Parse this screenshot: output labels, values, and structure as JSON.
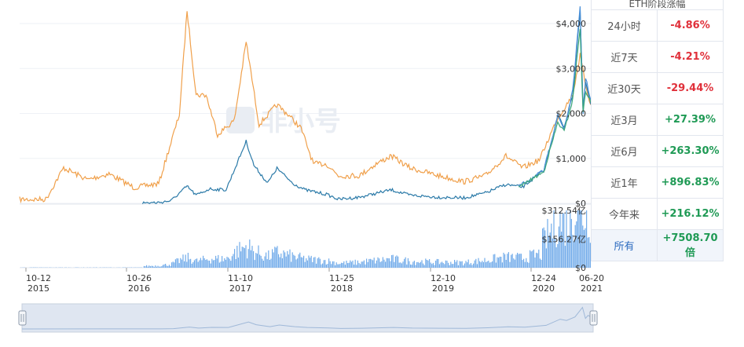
{
  "chart_data": {
    "type": "line",
    "price_axis_ticks": [
      "$4,000",
      "$3,000",
      "$2,000",
      "$1,000",
      "$0"
    ],
    "price_axis_values": [
      4000,
      3000,
      2000,
      1000,
      0
    ],
    "volume_axis_ticks": [
      "$312.54亿",
      "$156.27亿",
      "$0"
    ],
    "volume_axis_values": [
      312.54,
      156.27,
      0
    ],
    "x_ticks": [
      {
        "date": "10-12",
        "year": "2015"
      },
      {
        "date": "10-26",
        "year": "2016"
      },
      {
        "date": "11-10",
        "year": "2017"
      },
      {
        "date": "11-25",
        "year": "2018"
      },
      {
        "date": "12-10",
        "year": "2019"
      },
      {
        "date": "12-24",
        "year": "2020"
      },
      {
        "date": "06-20",
        "year": "2021"
      }
    ],
    "x_range": [
      "2015-10-12",
      "2021-06-20"
    ],
    "series": [
      {
        "color": "#f0a04b",
        "axis": "independent",
        "points": [
          [
            "2015-10-12",
            0.02
          ],
          [
            "2016-01-15",
            0.02
          ],
          [
            "2016-03-20",
            0.18
          ],
          [
            "2016-06-15",
            0.12
          ],
          [
            "2016-09-01",
            0.15
          ],
          [
            "2016-12-01",
            0.08
          ],
          [
            "2017-03-01",
            0.1
          ],
          [
            "2017-05-15",
            0.45
          ],
          [
            "2017-06-12",
            0.98
          ],
          [
            "2017-07-15",
            0.55
          ],
          [
            "2017-08-20",
            0.55
          ],
          [
            "2017-10-01",
            0.35
          ],
          [
            "2017-12-01",
            0.42
          ],
          [
            "2018-01-13",
            0.82
          ],
          [
            "2018-03-01",
            0.4
          ],
          [
            "2018-05-05",
            0.5
          ],
          [
            "2018-06-15",
            0.45
          ],
          [
            "2018-08-01",
            0.38
          ],
          [
            "2018-09-15",
            0.2
          ],
          [
            "2018-11-01",
            0.2
          ],
          [
            "2018-12-15",
            0.14
          ],
          [
            "2019-03-01",
            0.14
          ],
          [
            "2019-05-01",
            0.2
          ],
          [
            "2019-06-25",
            0.24
          ],
          [
            "2019-09-01",
            0.18
          ],
          [
            "2019-12-15",
            0.14
          ],
          [
            "2020-03-15",
            0.11
          ],
          [
            "2020-06-01",
            0.14
          ],
          [
            "2020-08-15",
            0.24
          ],
          [
            "2020-10-15",
            0.18
          ],
          [
            "2020-12-15",
            0.22
          ],
          [
            "2021-02-15",
            0.42
          ],
          [
            "2021-04-15",
            0.55
          ],
          [
            "2021-05-12",
            0.75
          ],
          [
            "2021-06-01",
            0.6
          ],
          [
            "2021-06-20",
            0.5
          ]
        ]
      },
      {
        "color": "#2b7aa8",
        "axis": "price",
        "points": [
          [
            "2017-01-01",
            10
          ],
          [
            "2017-03-01",
            18
          ],
          [
            "2017-04-15",
            60
          ],
          [
            "2017-06-12",
            380
          ],
          [
            "2017-07-15",
            180
          ],
          [
            "2017-09-01",
            320
          ],
          [
            "2017-11-01",
            300
          ],
          [
            "2018-01-13",
            1380
          ],
          [
            "2018-02-10",
            850
          ],
          [
            "2018-04-01",
            450
          ],
          [
            "2018-05-05",
            780
          ],
          [
            "2018-07-01",
            450
          ],
          [
            "2018-08-15",
            300
          ],
          [
            "2018-11-01",
            200
          ],
          [
            "2018-12-15",
            90
          ],
          [
            "2019-03-01",
            135
          ],
          [
            "2019-06-25",
            300
          ],
          [
            "2019-09-01",
            180
          ],
          [
            "2019-12-15",
            135
          ],
          [
            "2020-03-15",
            120
          ],
          [
            "2020-06-01",
            230
          ],
          [
            "2020-08-15",
            420
          ],
          [
            "2020-10-15",
            360
          ],
          [
            "2020-12-31",
            730
          ],
          [
            "2021-02-20",
            1950
          ],
          [
            "2021-03-15",
            1700
          ],
          [
            "2021-04-15",
            2400
          ],
          [
            "2021-05-12",
            4300
          ],
          [
            "2021-05-23",
            2100
          ],
          [
            "2021-06-01",
            2700
          ],
          [
            "2021-06-20",
            2200
          ]
        ]
      },
      {
        "color": "#4a90d9",
        "axis": "price",
        "points": [
          [
            "2020-10-01",
            380
          ],
          [
            "2020-12-31",
            730
          ],
          [
            "2021-02-20",
            1950
          ],
          [
            "2021-03-15",
            1650
          ],
          [
            "2021-04-15",
            2500
          ],
          [
            "2021-05-12",
            4350
          ],
          [
            "2021-05-23",
            2000
          ],
          [
            "2021-06-01",
            2800
          ],
          [
            "2021-06-20",
            2300
          ]
        ]
      },
      {
        "color": "#3aa679",
        "axis": "price",
        "points": [
          [
            "2020-10-01",
            360
          ],
          [
            "2020-12-31",
            700
          ],
          [
            "2021-02-20",
            1800
          ],
          [
            "2021-03-15",
            1600
          ],
          [
            "2021-04-15",
            2300
          ],
          [
            "2021-05-12",
            3900
          ],
          [
            "2021-05-23",
            2000
          ],
          [
            "2021-06-01",
            2500
          ],
          [
            "2021-06-20",
            2250
          ]
        ]
      }
    ],
    "volume": {
      "color": "#5b9de6",
      "max": 312.54
    }
  },
  "table": {
    "header": "ETH阶段涨幅",
    "rows": [
      {
        "label": "24小时",
        "value": "-4.86%",
        "sign": "neg"
      },
      {
        "label": "近7天",
        "value": "-4.21%",
        "sign": "neg"
      },
      {
        "label": "近30天",
        "value": "-29.44%",
        "sign": "neg"
      },
      {
        "label": "近3月",
        "value": "+27.39%",
        "sign": "pos"
      },
      {
        "label": "近6月",
        "value": "+263.30%",
        "sign": "pos"
      },
      {
        "label": "近1年",
        "value": "+896.83%",
        "sign": "pos"
      },
      {
        "label": "今年来",
        "value": "+216.12%",
        "sign": "pos"
      },
      {
        "label": "所有",
        "value": "+7508.70倍",
        "sign": "pos",
        "selected": true
      }
    ]
  },
  "watermark": "非小号",
  "colors": {
    "negative": "#e0303a",
    "positive": "#1f9a55",
    "navigator": "#dfe6f1"
  }
}
